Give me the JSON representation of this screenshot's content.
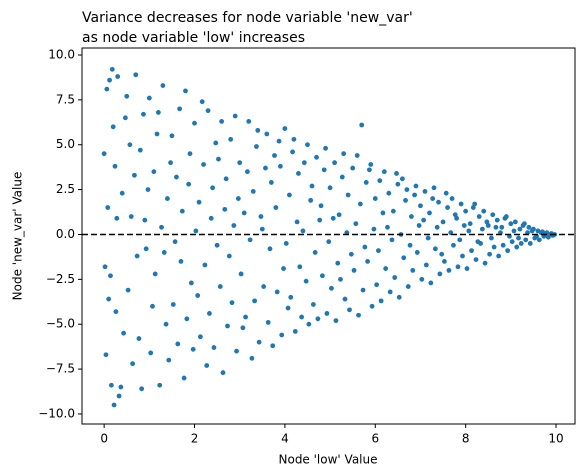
{
  "chart_data": {
    "type": "scatter",
    "title": [
      "Variance decreases for node variable 'new_var'",
      "as node variable 'low' increases"
    ],
    "xlabel": "Node 'low' Value",
    "ylabel": "Node 'new_var' Value",
    "color": "#1f77b4",
    "grid": false,
    "reference_line": {
      "y": 0,
      "color": "#000000",
      "dashed": true
    },
    "xlim": [
      -0.49,
      10.42
    ],
    "ylim": [
      -10.56,
      10.39
    ],
    "xticks": [
      0,
      2,
      4,
      6,
      8,
      10
    ],
    "yticks": [
      {
        "value": -10,
        "label": "−10.0"
      },
      {
        "value": -7.5,
        "label": "−7.5"
      },
      {
        "value": -5,
        "label": "−5.0"
      },
      {
        "value": -2.5,
        "label": "−2.5"
      },
      {
        "value": 0,
        "label": "0.0"
      },
      {
        "value": 2.5,
        "label": "2.5"
      },
      {
        "value": 5,
        "label": "5.0"
      },
      {
        "value": 7.5,
        "label": "7.5"
      },
      {
        "value": 10,
        "label": "10.0"
      }
    ],
    "x": [
      0,
      0.02,
      0.04,
      0.06,
      0.08,
      0.1,
      0.12,
      0.14,
      0.16,
      0.18,
      0.2,
      0.22,
      0.24,
      0.26,
      0.28,
      0.3,
      0.33,
      0.37,
      0.4,
      0.43,
      0.47,
      0.5,
      0.53,
      0.57,
      0.6,
      0.63,
      0.67,
      0.7,
      0.73,
      0.77,
      0.8,
      0.83,
      0.87,
      0.9,
      0.93,
      0.97,
      1.0,
      1.03,
      1.07,
      1.1,
      1.13,
      1.17,
      1.2,
      1.23,
      1.27,
      1.3,
      1.33,
      1.37,
      1.4,
      1.43,
      1.47,
      1.5,
      1.53,
      1.57,
      1.6,
      1.63,
      1.67,
      1.7,
      1.73,
      1.77,
      1.8,
      1.83,
      1.87,
      1.9,
      1.93,
      1.97,
      2.0,
      2.03,
      2.07,
      2.1,
      2.13,
      2.17,
      2.2,
      2.23,
      2.27,
      2.3,
      2.33,
      2.37,
      2.4,
      2.43,
      2.47,
      2.5,
      2.53,
      2.57,
      2.6,
      2.63,
      2.67,
      2.7,
      2.73,
      2.77,
      2.8,
      2.83,
      2.87,
      2.9,
      2.93,
      2.97,
      3.0,
      3.03,
      3.07,
      3.1,
      3.13,
      3.17,
      3.2,
      3.23,
      3.27,
      3.3,
      3.33,
      3.37,
      3.4,
      3.43,
      3.47,
      3.5,
      3.53,
      3.57,
      3.6,
      3.63,
      3.67,
      3.7,
      3.73,
      3.77,
      3.8,
      3.83,
      3.87,
      3.9,
      3.93,
      3.97,
      4.0,
      4.03,
      4.07,
      4.1,
      4.13,
      4.17,
      4.2,
      4.23,
      4.27,
      4.3,
      4.33,
      4.37,
      4.4,
      4.43,
      4.47,
      4.5,
      4.53,
      4.57,
      4.6,
      4.63,
      4.67,
      4.7,
      4.73,
      4.77,
      4.8,
      4.83,
      4.87,
      4.9,
      4.93,
      4.97,
      5.0,
      5.03,
      5.07,
      5.1,
      5.13,
      5.17,
      5.2,
      5.23,
      5.27,
      5.3,
      5.33,
      5.37,
      5.4,
      5.43,
      5.47,
      5.5,
      5.53,
      5.57,
      5.6,
      5.63,
      5.67,
      5.7,
      5.73,
      5.77,
      5.8,
      5.83,
      5.87,
      5.9,
      5.93,
      5.97,
      6.0,
      6.03,
      6.07,
      6.1,
      6.13,
      6.17,
      6.2,
      6.23,
      6.27,
      6.3,
      6.33,
      6.37,
      6.4,
      6.43,
      6.47,
      6.5,
      6.53,
      6.57,
      6.6,
      6.63,
      6.67,
      6.7,
      6.73,
      6.77,
      6.8,
      6.83,
      6.87,
      6.9,
      6.93,
      6.97,
      7.0,
      7.03,
      7.07,
      7.1,
      7.13,
      7.17,
      7.2,
      7.23,
      7.27,
      7.3,
      7.33,
      7.37,
      7.4,
      7.43,
      7.47,
      7.5,
      7.53,
      7.57,
      7.6,
      7.63,
      7.67,
      7.7,
      7.73,
      7.77,
      7.8,
      7.83,
      7.87,
      7.9,
      7.93,
      7.97,
      8.0,
      8.03,
      8.07,
      8.1,
      8.13,
      8.17,
      8.2,
      8.23,
      8.27,
      8.3,
      8.33,
      8.37,
      8.4,
      8.43,
      8.47,
      8.5,
      8.53,
      8.57,
      8.6,
      8.63,
      8.67,
      8.7,
      8.73,
      8.77,
      8.8,
      8.83,
      8.87,
      8.9,
      8.93,
      8.97,
      9.0,
      9.03,
      9.07,
      9.1,
      9.13,
      9.17,
      9.2,
      9.23,
      9.27,
      9.3,
      9.33,
      9.37,
      9.4,
      9.43,
      9.47,
      9.5,
      9.53,
      9.57,
      9.6,
      9.63,
      9.67,
      9.7,
      9.73,
      9.77,
      9.8,
      9.83,
      9.87,
      9.9,
      9.93,
      9.97
    ],
    "values": [
      4.5,
      -1.8,
      -6.7,
      8.1,
      1.5,
      -3.6,
      8.6,
      -2.3,
      -8.4,
      9.2,
      6.0,
      -9.5,
      3.8,
      -4.3,
      0.9,
      8.8,
      -9.0,
      -8.5,
      2.3,
      -5.5,
      6.5,
      7.7,
      -3.1,
      5.0,
      1.0,
      -7.2,
      3.3,
      8.9,
      -1.2,
      -5.8,
      4.7,
      -8.6,
      6.7,
      0.8,
      -0.8,
      2.5,
      7.6,
      -6.6,
      -4.0,
      3.5,
      -2.2,
      5.6,
      6.8,
      -8.4,
      0.4,
      8.3,
      -1.0,
      -5.0,
      2.0,
      -7.0,
      4.0,
      5.5,
      -3.9,
      -0.4,
      3.2,
      -6.1,
      7.0,
      -1.5,
      1.3,
      -8.0,
      8.0,
      -4.7,
      2.8,
      4.5,
      -2.7,
      -6.4,
      6.2,
      0.2,
      -3.4,
      1.8,
      -5.7,
      7.4,
      3.9,
      -1.7,
      -7.3,
      6.9,
      -4.4,
      0.9,
      2.6,
      -6.3,
      5.1,
      -0.6,
      4.2,
      -2.9,
      6.3,
      -7.7,
      1.4,
      3.1,
      -5.1,
      -1.2,
      5.3,
      -3.8,
      0.5,
      6.6,
      -6.5,
      2.0,
      4.0,
      -2.2,
      -5.2,
      1.2,
      -4.6,
      3.5,
      6.3,
      -0.3,
      -6.9,
      2.4,
      -3.7,
      4.9,
      5.8,
      -6.0,
      1.0,
      0.3,
      -2.9,
      3.7,
      5.6,
      -4.9,
      -0.8,
      2.9,
      -6.2,
      4.4,
      1.5,
      -3.2,
      5.2,
      3.8,
      -5.6,
      -1.9,
      5.9,
      -0.5,
      -4.1,
      2.2,
      -3.5,
      4.6,
      5.3,
      -5.4,
      0.7,
      3.4,
      -1.8,
      -4.6,
      0.2,
      4.0,
      -2.6,
      5.0,
      -5.0,
      1.9,
      2.7,
      -3.9,
      -1.0,
      4.3,
      -4.7,
      0.8,
      1.6,
      -2.3,
      3.6,
      4.8,
      -4.4,
      -0.4,
      2.6,
      -3.0,
      0.9,
      4.0,
      -4.8,
      -1.6,
      1.1,
      -2.5,
      3.2,
      4.5,
      -3.6,
      0.1,
      2.2,
      -4.2,
      -1.1,
      3.7,
      -2.0,
      0.6,
      4.4,
      -4.5,
      1.7,
      6.1,
      -3.1,
      -0.7,
      2.9,
      -1.5,
      3.6,
      3.9,
      -4.0,
      0.3,
      2.0,
      -2.8,
      -0.9,
      3.0,
      -3.7,
      1.2,
      3.5,
      -1.9,
      0.4,
      2.3,
      -3.2,
      -0.3,
      1.3,
      -2.4,
      3.4,
      2.8,
      -3.5,
      0.0,
      3.1,
      -1.3,
      1.9,
      2.5,
      -2.9,
      -0.6,
      1.0,
      -2.0,
      2.2,
      2.7,
      -1.0,
      0.5,
      1.6,
      -2.5,
      0.8,
      2.4,
      -1.7,
      -0.2,
      1.2,
      -2.7,
      2.0,
      2.6,
      -0.8,
      0.4,
      1.8,
      -2.2,
      -1.1,
      0.7,
      -1.5,
      2.3,
      1.5,
      -2.0,
      0.1,
      2.0,
      -0.6,
      1.1,
      0.9,
      -1.8,
      -0.3,
      1.7,
      -1.2,
      0.5,
      1.3,
      -1.9,
      0.2,
      0.6,
      -0.9,
      1.5,
      1.7,
      -1.4,
      -0.4,
      1.0,
      -0.5,
      0.3,
      1.3,
      -1.6,
      0.7,
      0.5,
      -1.1,
      -0.2,
      1.1,
      -0.7,
      0.4,
      0.8,
      -1.2,
      0.1,
      0.4,
      -0.6,
      0.9,
      1.0,
      -0.9,
      -0.1,
      0.6,
      -0.4,
      0.2,
      0.7,
      -0.7,
      -0.2,
      0.3,
      -0.5,
      0.5,
      0.6,
      -0.3,
      0.1,
      0.4,
      -0.5,
      0.2,
      0.3,
      -0.2,
      -0.1,
      0.2,
      -0.3,
      0.1,
      0.15,
      -0.1,
      0.05,
      0.1,
      -0.15,
      0.0,
      0.05,
      -0.05,
      0.0
    ]
  }
}
